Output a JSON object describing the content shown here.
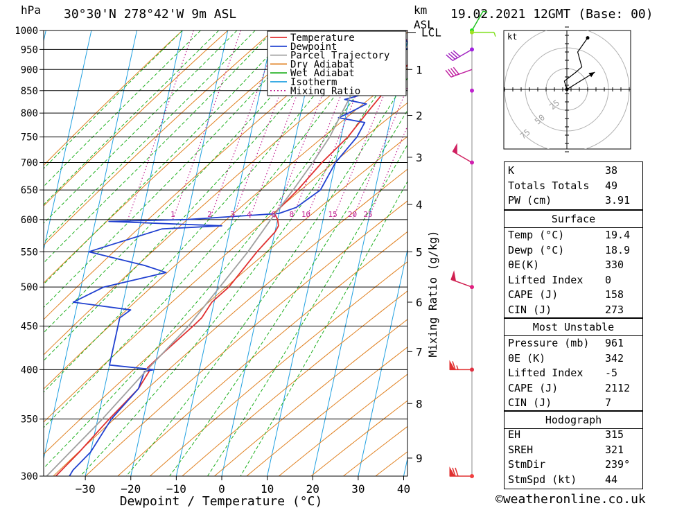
{
  "header": {
    "pressure_unit": "hPa",
    "location": "30°30'N  278°42'W  9m  ASL",
    "height_unit_line1": "km",
    "height_unit_line2": "ASL",
    "datetime": "19.02.2021  12GMT  (Base: 00)"
  },
  "chart_data": {
    "type": "line",
    "chart_kind": "skew-T log-P sounding",
    "xlabel": "Dewpoint / Temperature (°C)",
    "ylabel_left": "hPa",
    "ylabel_right": "Mixing Ratio (g/kg)",
    "xlim": [
      -40,
      40
    ],
    "ylim_hpa": [
      1000,
      300
    ],
    "x_ticks": [
      -30,
      -20,
      -10,
      0,
      10,
      20,
      30,
      40
    ],
    "pressure_ticks": [
      300,
      350,
      400,
      450,
      500,
      550,
      600,
      650,
      700,
      750,
      800,
      850,
      900,
      950,
      1000
    ],
    "height_ticks_km": [
      {
        "km": 1,
        "p": 900
      },
      {
        "km": 2,
        "p": 795
      },
      {
        "km": 3,
        "p": 710
      },
      {
        "km": 4,
        "p": 625
      },
      {
        "km": 5,
        "p": 550
      },
      {
        "km": 6,
        "p": 480
      },
      {
        "km": 7,
        "p": 420
      },
      {
        "km": 8,
        "p": 365
      },
      {
        "km": 9,
        "p": 315
      }
    ],
    "lcl_label": "LCL",
    "lcl_pressure": 995,
    "mixing_ratio_labels": [
      "1",
      "2",
      "3",
      "4",
      "6",
      "8",
      "10",
      "15",
      "20",
      "25"
    ],
    "legend": {
      "placement": "top-right",
      "entries": [
        {
          "label": "Temperature",
          "color": "#e03030",
          "style": "solid"
        },
        {
          "label": "Dewpoint",
          "color": "#2040d0",
          "style": "solid"
        },
        {
          "label": "Parcel Trajectory",
          "color": "#a0a0a0",
          "style": "solid"
        },
        {
          "label": "Dry Adiabat",
          "color": "#e08020",
          "style": "solid"
        },
        {
          "label": "Wet Adiabat",
          "color": "#20b020",
          "style": "solid"
        },
        {
          "label": "Isotherm",
          "color": "#20a0e0",
          "style": "solid"
        },
        {
          "label": "Mixing Ratio",
          "color": "#c02090",
          "style": "dotted"
        }
      ]
    },
    "series": [
      {
        "name": "Temperature",
        "color": "#e03030",
        "points": [
          [
            1000,
            19.4
          ],
          [
            985,
            21.0
          ],
          [
            960,
            23.5
          ],
          [
            950,
            23.3
          ],
          [
            925,
            22.0
          ],
          [
            900,
            20.5
          ],
          [
            850,
            17.5
          ],
          [
            800,
            14.5
          ],
          [
            750,
            11.5
          ],
          [
            700,
            7.0
          ],
          [
            650,
            3.0
          ],
          [
            610,
            -1.0
          ],
          [
            600,
            0.0
          ],
          [
            590,
            0.5
          ],
          [
            580,
            0.0
          ],
          [
            550,
            -3.0
          ],
          [
            500,
            -7.5
          ],
          [
            480,
            -10.5
          ],
          [
            460,
            -12.0
          ],
          [
            450,
            -13.5
          ],
          [
            420,
            -18.5
          ],
          [
            402,
            -21.5
          ],
          [
            398,
            -21.0
          ],
          [
            380,
            -22.5
          ],
          [
            350,
            -27.5
          ],
          [
            320,
            -32.5
          ],
          [
            300,
            -36.5
          ]
        ]
      },
      {
        "name": "Dewpoint",
        "color": "#2040d0",
        "points": [
          [
            1000,
            18.9
          ],
          [
            975,
            19.5
          ],
          [
            960,
            21.0
          ],
          [
            950,
            20.0
          ],
          [
            925,
            19.0
          ],
          [
            900,
            18.0
          ],
          [
            850,
            15.5
          ],
          [
            830,
            9.0
          ],
          [
            820,
            14.0
          ],
          [
            800,
            10.5
          ],
          [
            790,
            8.5
          ],
          [
            780,
            14.5
          ],
          [
            750,
            13.5
          ],
          [
            700,
            10.0
          ],
          [
            650,
            8.0
          ],
          [
            620,
            3.5
          ],
          [
            610,
            0.0
          ],
          [
            600,
            -20.0
          ],
          [
            597,
            -37.0
          ],
          [
            590,
            -12.0
          ],
          [
            585,
            -25.0
          ],
          [
            550,
            -40.0
          ],
          [
            530,
            -27.0
          ],
          [
            520,
            -22.0
          ],
          [
            500,
            -35.0
          ],
          [
            480,
            -41.0
          ],
          [
            470,
            -28.0
          ],
          [
            460,
            -30.0
          ],
          [
            405,
            -30.0
          ],
          [
            400,
            -20.0
          ],
          [
            398,
            -22.0
          ],
          [
            380,
            -22.5
          ],
          [
            350,
            -27.0
          ],
          [
            320,
            -30.0
          ],
          [
            305,
            -33.0
          ],
          [
            300,
            -33.5
          ]
        ]
      },
      {
        "name": "Parcel Trajectory",
        "color": "#a0a0a0",
        "points": [
          [
            1000,
            19.0
          ],
          [
            950,
            14.5
          ],
          [
            900,
            12.0
          ],
          [
            850,
            10.5
          ],
          [
            800,
            9.0
          ],
          [
            750,
            7.5
          ],
          [
            700,
            5.0
          ],
          [
            650,
            2.0
          ],
          [
            600,
            -1.5
          ],
          [
            550,
            -5.0
          ],
          [
            500,
            -9.5
          ],
          [
            450,
            -14.5
          ],
          [
            400,
            -21.5
          ],
          [
            350,
            -29.0
          ],
          [
            300,
            -38.5
          ]
        ]
      }
    ],
    "winds": [
      {
        "p": 1000,
        "dir": 30,
        "kt": 5,
        "color": "#20c020"
      },
      {
        "p": 995,
        "dir": 90,
        "kt": 5,
        "color": "#80e020"
      },
      {
        "p": 950,
        "dir": 240,
        "kt": 40,
        "color": "#a020c0"
      },
      {
        "p": 900,
        "dir": 250,
        "kt": 40,
        "color": "#c020a0"
      },
      {
        "p": 700,
        "dir": 300,
        "kt": 50,
        "color": "#d02060"
      },
      {
        "p": 500,
        "dir": 290,
        "kt": 50,
        "color": "#d02050"
      },
      {
        "p": 400,
        "dir": 270,
        "kt": 65,
        "color": "#e03030"
      },
      {
        "p": 300,
        "dir": 270,
        "kt": 70,
        "color": "#e03030"
      }
    ],
    "wind_marker_colors": [
      {
        "p": 1000,
        "color": "#20e020"
      },
      {
        "p": 995,
        "color": "#a0e020"
      },
      {
        "p": 950,
        "color": "#a020e0"
      },
      {
        "p": 850,
        "color": "#c020d0"
      },
      {
        "p": 700,
        "color": "#d020b0"
      },
      {
        "p": 500,
        "color": "#e02080"
      },
      {
        "p": 400,
        "color": "#e03040"
      },
      {
        "p": 300,
        "color": "#f04040"
      }
    ],
    "hodograph": {
      "unit_label": "kt",
      "ring_labels": [
        "25",
        "50",
        "75"
      ],
      "trace_points_kt": [
        [
          0,
          0
        ],
        [
          -3,
          10
        ],
        [
          10,
          20
        ],
        [
          18,
          27
        ],
        [
          13,
          45
        ],
        [
          25,
          62
        ]
      ],
      "storm_motion_kt": [
        21,
        13
      ]
    }
  },
  "indices": {
    "general": [
      {
        "key": "K",
        "value": "38"
      },
      {
        "key": "Totals Totals",
        "value": "49"
      },
      {
        "key": "PW (cm)",
        "value": "3.91"
      }
    ],
    "surface_title": "Surface",
    "surface": [
      {
        "key": "Temp (°C)",
        "value": "19.4"
      },
      {
        "key": "Dewp (°C)",
        "value": "18.9"
      },
      {
        "key": "θE(K)",
        "value": "330"
      },
      {
        "key": "Lifted Index",
        "value": "0"
      },
      {
        "key": "CAPE (J)",
        "value": "158"
      },
      {
        "key": "CIN (J)",
        "value": "273"
      }
    ],
    "mu_title": "Most Unstable",
    "mu": [
      {
        "key": "Pressure (mb)",
        "value": "961"
      },
      {
        "key": "θE (K)",
        "value": "342"
      },
      {
        "key": "Lifted Index",
        "value": "-5"
      },
      {
        "key": "CAPE (J)",
        "value": "2112"
      },
      {
        "key": "CIN (J)",
        "value": "7"
      }
    ],
    "hodo_title": "Hodograph",
    "hodo": [
      {
        "key": "EH",
        "value": "315"
      },
      {
        "key": "SREH",
        "value": "321"
      },
      {
        "key": "StmDir",
        "value": "239°"
      },
      {
        "key": "StmSpd (kt)",
        "value": "44"
      }
    ]
  },
  "footer": {
    "credit": "©weatheronline.co.uk"
  }
}
